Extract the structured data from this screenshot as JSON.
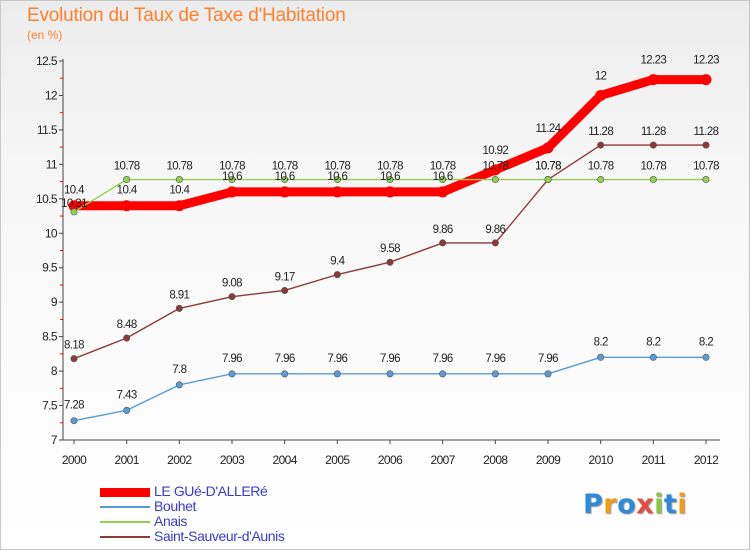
{
  "chart_data": {
    "type": "line",
    "title": "Evolution du Taux de Taxe d'Habitation",
    "subtitle": "(en %)",
    "x": [
      "2000",
      "2001",
      "2002",
      "2003",
      "2004",
      "2005",
      "2006",
      "2007",
      "2008",
      "2009",
      "2010",
      "2011",
      "2012"
    ],
    "ylim": [
      7,
      12.5
    ],
    "yticks": [
      "7",
      "7.5",
      "8",
      "8.5",
      "9",
      "9.5",
      "10",
      "10.5",
      "11",
      "11.5",
      "12",
      "12.5"
    ],
    "grid": false,
    "legend_position": "bottom-left",
    "series": [
      {
        "name": "LE GUé-D'ALLERé",
        "color": "#ff0000",
        "values": [
          10.4,
          10.4,
          10.4,
          10.6,
          10.6,
          10.6,
          10.6,
          10.6,
          10.92,
          11.24,
          12,
          12.23,
          12.23
        ],
        "labels": [
          "10.4",
          "10.4",
          "10.4",
          "10.6",
          "10.6",
          "10.6",
          "10.6",
          "10.6",
          "10.92",
          "11.24",
          "12",
          "12.23",
          "12.23"
        ]
      },
      {
        "name": "Bouhet",
        "color": "#5b9bd5",
        "values": [
          7.28,
          7.43,
          7.8,
          7.96,
          7.96,
          7.96,
          7.96,
          7.96,
          7.96,
          7.96,
          8.2,
          8.2,
          8.2
        ],
        "labels": [
          "7.28",
          "7.43",
          "7.8",
          "7.96",
          "7.96",
          "7.96",
          "7.96",
          "7.96",
          "7.96",
          "7.96",
          "8.2",
          "8.2",
          "8.2"
        ]
      },
      {
        "name": "Anais",
        "color": "#92d050",
        "values": [
          10.31,
          10.78,
          10.78,
          10.78,
          10.78,
          10.78,
          10.78,
          10.78,
          10.78,
          10.78,
          10.78,
          10.78,
          10.78
        ],
        "labels": [
          "10.31",
          "10.78",
          "10.78",
          "10.78",
          "10.78",
          "10.78",
          "10.78",
          "10.78",
          "10.78",
          "10.78",
          "10.78",
          "10.78",
          "10.78"
        ]
      },
      {
        "name": "Saint-Sauveur-d'Aunis",
        "color": "#8b3a3a",
        "values": [
          8.18,
          8.48,
          8.91,
          9.08,
          9.17,
          9.4,
          9.58,
          9.86,
          9.86,
          10.78,
          11.28,
          11.28,
          11.28
        ],
        "labels": [
          "8.18",
          "8.48",
          "8.91",
          "9.08",
          "9.17",
          "9.4",
          "9.58",
          "9.86",
          "9.86",
          "10.78",
          "11.28",
          "11.28",
          "11.28"
        ]
      }
    ]
  },
  "logo": {
    "letters": [
      "P",
      "r",
      "o",
      "x",
      "i",
      "t",
      "i"
    ],
    "colors": [
      "#2e8ad8",
      "#f39c12",
      "#2e8ad8",
      "#e74c3c",
      "#8cc63f",
      "#2e8ad8",
      "#f39c12"
    ]
  }
}
